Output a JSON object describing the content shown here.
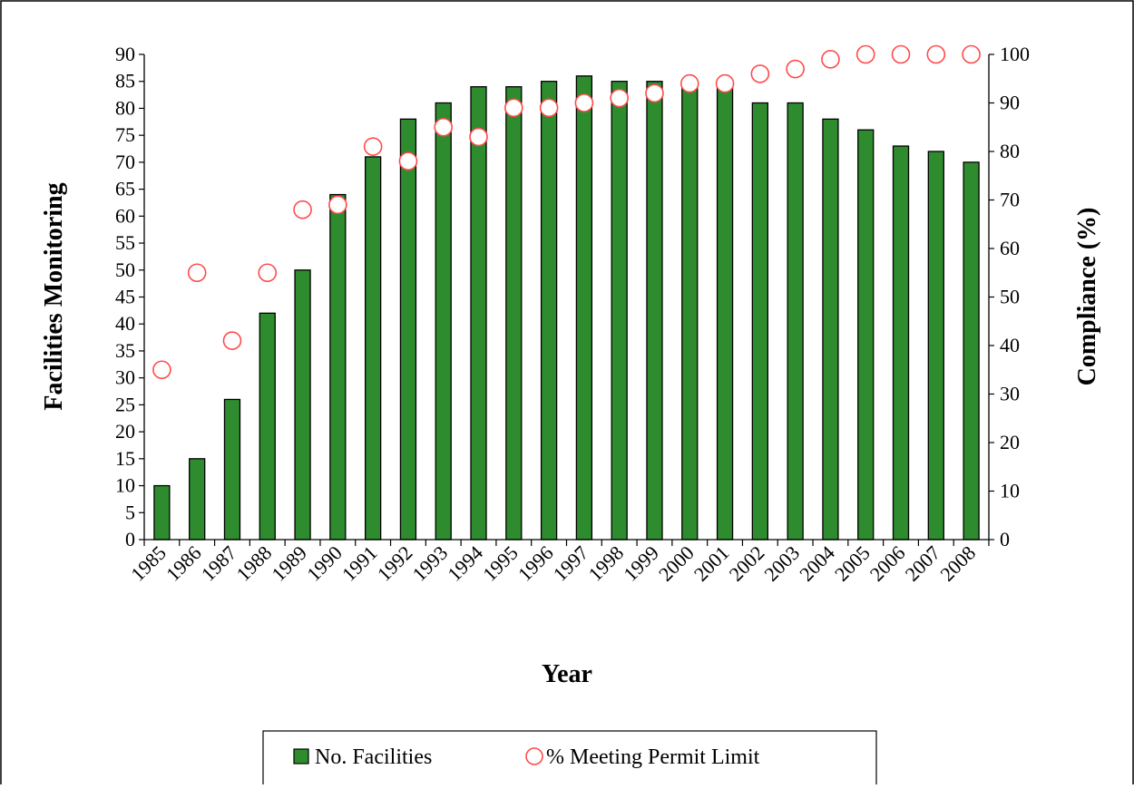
{
  "chart_data": {
    "type": "bar",
    "title": "",
    "xlabel": "Year",
    "ylabel": "Facilities Monitoring",
    "y2label": "Compliance (%)",
    "categories": [
      "1985",
      "1986",
      "1987",
      "1988",
      "1989",
      "1990",
      "1991",
      "1992",
      "1993",
      "1994",
      "1995",
      "1996",
      "1997",
      "1998",
      "1999",
      "2000",
      "2001",
      "2002",
      "2003",
      "2004",
      "2005",
      "2006",
      "2007",
      "2008"
    ],
    "series": [
      {
        "name": "No. Facilities",
        "type": "bar",
        "axis": "left",
        "color": "#2e8b2e",
        "values": [
          10,
          15,
          26,
          42,
          50,
          64,
          71,
          78,
          81,
          84,
          84,
          85,
          86,
          85,
          85,
          84,
          84,
          81,
          81,
          78,
          76,
          73,
          72,
          70
        ]
      },
      {
        "name": "% Meeting Permit Limit",
        "type": "scatter",
        "axis": "right",
        "marker": "open-circle",
        "color": "#ff4a4a",
        "values": [
          35,
          55,
          41,
          55,
          68,
          69,
          81,
          78,
          85,
          83,
          89,
          89,
          90,
          91,
          92,
          94,
          94,
          96,
          97,
          99,
          100,
          100,
          100,
          100
        ]
      }
    ],
    "ylim": [
      0,
      90
    ],
    "yticks": [
      0,
      5,
      10,
      15,
      20,
      25,
      30,
      35,
      40,
      45,
      50,
      55,
      60,
      65,
      70,
      75,
      80,
      85,
      90
    ],
    "y2lim": [
      0,
      100
    ],
    "y2ticks": [
      0,
      10,
      20,
      30,
      40,
      50,
      60,
      70,
      80,
      90,
      100
    ],
    "grid": false,
    "legend": "bottom"
  }
}
